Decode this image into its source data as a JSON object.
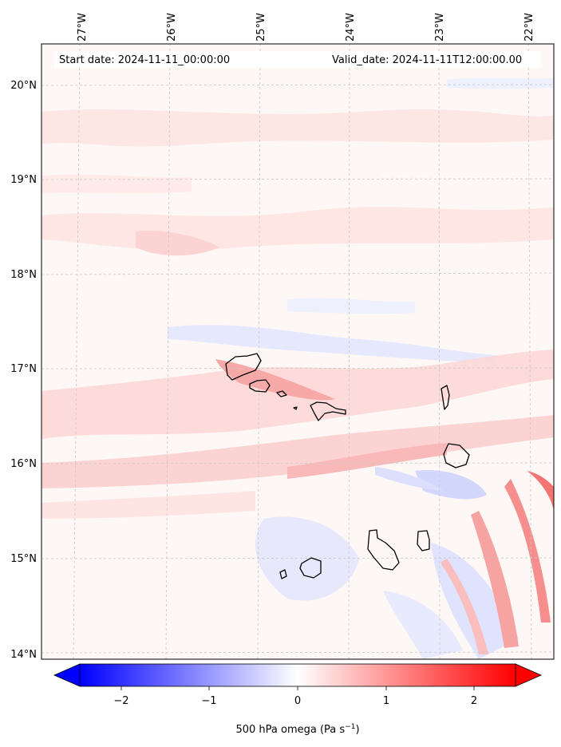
{
  "header": {
    "start_label": "Start date: 2024-11-11_00:00:00",
    "valid_label": "Valid_date: 2024-11-11T12:00:00.00"
  },
  "map": {
    "lon_ticks": [
      "27°W",
      "26°W",
      "25°W",
      "24°W",
      "23°W",
      "22°W"
    ],
    "lat_ticks": [
      "20°N",
      "19°N",
      "18°N",
      "17°N",
      "16°N",
      "15°N",
      "14°N"
    ],
    "gridlines": true,
    "region": "Cape Verde"
  },
  "colorbar": {
    "ticks": [
      "−2",
      "−1",
      "0",
      "1",
      "2"
    ],
    "range": [
      -2.6,
      2.6
    ],
    "colormap": "bwr",
    "extend": "both",
    "label_prefix": "500 hPa omega (Pa s",
    "label_exponent": "−1",
    "label_suffix": ")"
  },
  "colors": {
    "negative": "#0000ff",
    "zero": "#ffffff",
    "positive": "#ff0000",
    "coastline": "#000000",
    "grid": "#c8c8c8"
  }
}
